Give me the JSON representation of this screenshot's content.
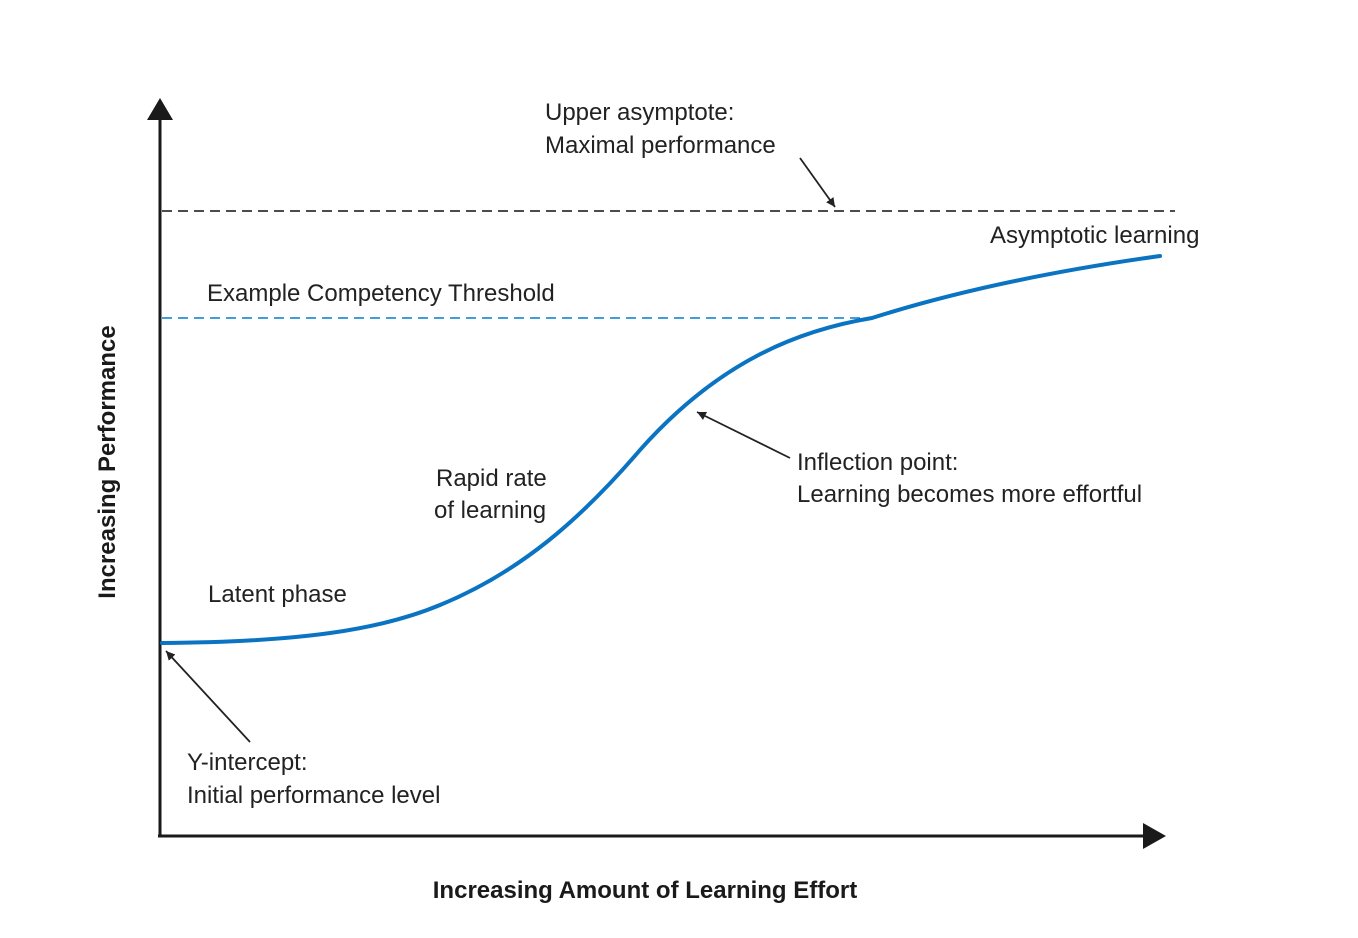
{
  "diagram": {
    "x_axis_label": "Increasing Amount of Learning Effort",
    "y_axis_label": "Increasing Performance",
    "annotations": {
      "upper_asymptote": [
        "Upper asymptote:",
        "Maximal performance"
      ],
      "competency_threshold": "Example Competency Threshold",
      "asymptotic_learning": "Asymptotic learning",
      "inflection_point": [
        "Inflection point:",
        "Learning becomes more effortful"
      ],
      "rapid_rate": [
        "Rapid rate",
        "of learning"
      ],
      "latent_phase": "Latent phase",
      "y_intercept": [
        "Y-intercept:",
        "Initial performance level"
      ]
    },
    "colors": {
      "curve": "#0a74c2",
      "threshold_line": "#2a8fd4",
      "asymptote_line": "#333333",
      "axis": "#1a1a1a",
      "text": "#222222"
    }
  }
}
